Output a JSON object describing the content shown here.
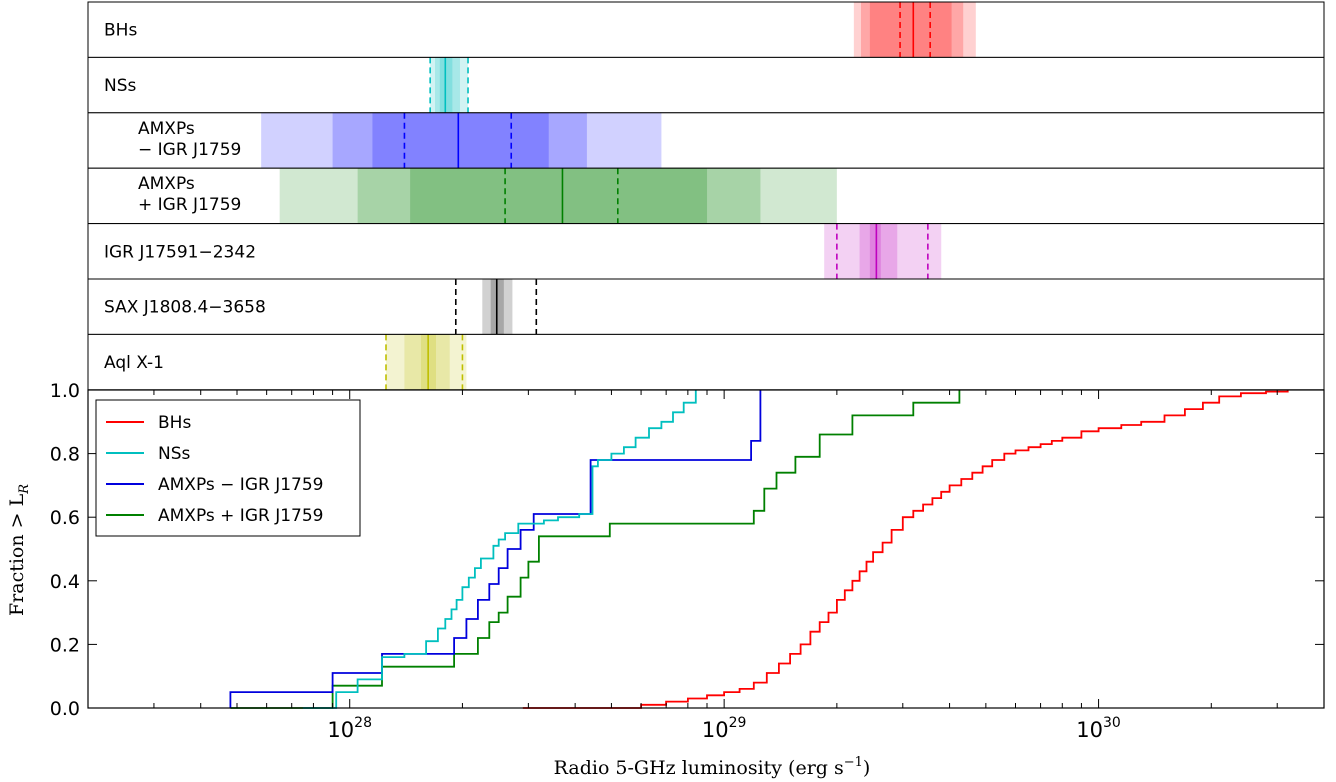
{
  "chart_data": {
    "type": "line",
    "xlabel_prefix": "Radio 5-GHz luminosity (erg s",
    "xlabel_exp": "−1",
    "xlabel_suffix": ")",
    "ylabel": "Fraction > L",
    "ylabel_sub": "R",
    "x_scale": "log",
    "xlim": [
      2e+27,
      4e+30
    ],
    "ylim": [
      0,
      1.0
    ],
    "x_ticks": [
      {
        "mant": "10",
        "exp": "28",
        "value": 1e+28
      },
      {
        "mant": "10",
        "exp": "29",
        "value": 1e+29
      },
      {
        "mant": "10",
        "exp": "30",
        "value": 1e+30
      }
    ],
    "y_ticks": [
      {
        "label": "0.0",
        "value": 0.0
      },
      {
        "label": "0.2",
        "value": 0.2
      },
      {
        "label": "0.4",
        "value": 0.4
      },
      {
        "label": "0.6",
        "value": 0.6
      },
      {
        "label": "0.8",
        "value": 0.8
      },
      {
        "label": "1.0",
        "value": 1.0
      }
    ],
    "legend": {
      "location": "top-left",
      "entries": [
        "BHs",
        "NSs",
        "AMXPs − IGR J1759",
        "AMXPs + IGR J1759"
      ]
    },
    "series": [
      {
        "name": "AMXPs + IGR J1759",
        "color": "#008000",
        "x": [
          4.8e+27,
          9e+27,
          1.22e+28,
          1.9e+28,
          2.2e+28,
          2.36e+28,
          2.5e+28,
          2.64e+28,
          2.86e+28,
          3e+28,
          3.2e+28,
          4.95e+28,
          5.1e+28,
          5.45e+28,
          7e+28,
          7.6e+28,
          1.2e+29,
          1.28e+29,
          1.38e+29,
          1.55e+29,
          1.8e+29,
          2.2e+29,
          3.2e+29,
          4.25e+29
        ],
        "y": [
          0.0,
          0.07,
          0.13,
          0.17,
          0.22,
          0.27,
          0.3,
          0.35,
          0.41,
          0.46,
          0.54,
          0.58,
          0.58,
          0.58,
          0.58,
          0.58,
          0.62,
          0.69,
          0.74,
          0.79,
          0.86,
          0.92,
          0.96,
          1.0
        ]
      },
      {
        "name": "AMXPs − IGR J1759",
        "color": "#0000dd",
        "x": [
          4.8e+27,
          9e+27,
          1.22e+28,
          1.9e+28,
          2.05e+28,
          2.2e+28,
          2.36e+28,
          2.5e+28,
          2.64e+28,
          2.86e+28,
          3.1e+28,
          4.4e+28,
          1.18e+29,
          1.25e+29
        ],
        "y": [
          0.05,
          0.11,
          0.17,
          0.22,
          0.28,
          0.34,
          0.39,
          0.44,
          0.5,
          0.56,
          0.61,
          0.78,
          0.84,
          1.0
        ]
      },
      {
        "name": "NSs",
        "color": "#00bfbf",
        "x": [
          7.5e+27,
          9.2e+27,
          1.05e+28,
          1.22e+28,
          1.4e+28,
          1.6e+28,
          1.72e+28,
          1.8e+28,
          1.87e+28,
          1.93e+28,
          2e+28,
          2.08e+28,
          2.16e+28,
          2.24e+28,
          2.33e+28,
          2.42e+28,
          2.5e+28,
          2.6e+28,
          2.7e+28,
          2.82e+28,
          2.95e+28,
          3.1e+28,
          3.3e+28,
          3.6e+28,
          4.1e+28,
          4.45e+28,
          4.6e+28,
          5e+28,
          5.4e+28,
          5.8e+28,
          6.3e+28,
          6.8e+28,
          7.3e+28,
          7.8e+28,
          8.4e+28
        ],
        "y": [
          0.0,
          0.05,
          0.09,
          0.16,
          0.17,
          0.21,
          0.25,
          0.28,
          0.31,
          0.34,
          0.38,
          0.41,
          0.44,
          0.47,
          0.47,
          0.51,
          0.53,
          0.55,
          0.55,
          0.58,
          0.58,
          0.58,
          0.59,
          0.6,
          0.61,
          0.76,
          0.78,
          0.8,
          0.82,
          0.85,
          0.88,
          0.9,
          0.93,
          0.96,
          1.0
        ]
      },
      {
        "name": "BHs",
        "color": "#ff0000",
        "x": [
          2.9e+28,
          4.5e+28,
          6e+28,
          7e+28,
          8e+28,
          9e+28,
          1e+29,
          1.1e+29,
          1.2e+29,
          1.3e+29,
          1.4e+29,
          1.5e+29,
          1.6e+29,
          1.7e+29,
          1.8e+29,
          1.9e+29,
          2e+29,
          2.1e+29,
          2.2e+29,
          2.3e+29,
          2.4e+29,
          2.5e+29,
          2.65e+29,
          2.8e+29,
          3e+29,
          3.2e+29,
          3.4e+29,
          3.6e+29,
          3.8e+29,
          4e+29,
          4.3e+29,
          4.6e+29,
          4.9e+29,
          5.2e+29,
          5.6e+29,
          6e+29,
          6.5e+29,
          7e+29,
          7.5e+29,
          8e+29,
          9e+29,
          1e+30,
          1.15e+30,
          1.3e+30,
          1.5e+30,
          1.7e+30,
          1.9e+30,
          2.1e+30,
          2.4e+30,
          2.8e+30,
          3.2e+30
        ],
        "y": [
          0.0,
          0.0,
          0.01,
          0.02,
          0.03,
          0.04,
          0.05,
          0.06,
          0.08,
          0.11,
          0.14,
          0.17,
          0.2,
          0.24,
          0.27,
          0.3,
          0.34,
          0.37,
          0.4,
          0.43,
          0.46,
          0.49,
          0.52,
          0.56,
          0.6,
          0.62,
          0.64,
          0.66,
          0.68,
          0.7,
          0.72,
          0.74,
          0.76,
          0.78,
          0.8,
          0.81,
          0.82,
          0.83,
          0.84,
          0.85,
          0.87,
          0.88,
          0.89,
          0.9,
          0.92,
          0.94,
          0.96,
          0.98,
          0.99,
          0.995,
          1.0
        ]
      }
    ],
    "strips": [
      {
        "label_lines": [
          "BHs"
        ],
        "label_x": 104,
        "color": "#ff0000",
        "median": 3.2e+29,
        "ci": [
          2.95e+29,
          3.55e+29
        ],
        "bands": [
          [
            2.22e+29,
            4.7e+29
          ],
          [
            2.32e+29,
            4.35e+29
          ],
          [
            2.45e+29,
            4.05e+29
          ]
        ]
      },
      {
        "label_lines": [
          "NSs"
        ],
        "label_x": 104,
        "color": "#00bfbf",
        "median": 1.8e+28,
        "ci": [
          1.64e+28,
          2.07e+28
        ],
        "bands": [
          [
            1.64e+28,
            2.07e+28
          ],
          [
            1.69e+28,
            1.97e+28
          ],
          [
            1.74e+28,
            1.88e+28
          ]
        ]
      },
      {
        "label_lines": [
          "AMXPs",
          "− IGR J1759"
        ],
        "label_x": 138,
        "color": "#0000ff",
        "median": 1.95e+28,
        "ci": [
          1.4e+28,
          2.7e+28
        ],
        "bands": [
          [
            5.8e+27,
            6.8e+28
          ],
          [
            9e+27,
            4.3e+28
          ],
          [
            1.15e+28,
            3.4e+28
          ]
        ]
      },
      {
        "label_lines": [
          "AMXPs",
          "+ IGR J1759"
        ],
        "label_x": 138,
        "color": "#008000",
        "median": 3.7e+28,
        "ci": [
          2.6e+28,
          5.2e+28
        ],
        "bands": [
          [
            6.5e+27,
            2e+29
          ],
          [
            1.05e+28,
            1.25e+29
          ],
          [
            1.45e+28,
            9e+28
          ]
        ]
      },
      {
        "label_lines": [
          "IGR J17591−2342"
        ],
        "label_x": 104,
        "color": "#bf00bf",
        "median": 2.55e+29,
        "ci": [
          2e+29,
          3.5e+29
        ],
        "bands": [
          [
            1.85e+29,
            3.8e+29
          ],
          [
            2.3e+29,
            2.9e+29
          ],
          [
            2.45e+29,
            2.62e+29
          ]
        ]
      },
      {
        "label_lines": [
          "SAX J1808.4−3658"
        ],
        "label_x": 104,
        "color": "#000000",
        "median": 2.47e+28,
        "ci": [
          1.92e+28,
          3.15e+28
        ],
        "bands": [
          [
            2.26e+28,
            2.72e+28
          ],
          [
            2.38e+28,
            2.58e+28
          ]
        ]
      },
      {
        "label_lines": [
          "Aql X-1"
        ],
        "label_x": 104,
        "color": "#bfbf00",
        "median": 1.62e+28,
        "ci": [
          1.25e+28,
          2e+28
        ],
        "bands": [
          [
            1.25e+28,
            2.05e+28
          ],
          [
            1.4e+28,
            1.85e+28
          ],
          [
            1.55e+28,
            1.7e+28
          ]
        ]
      }
    ]
  }
}
